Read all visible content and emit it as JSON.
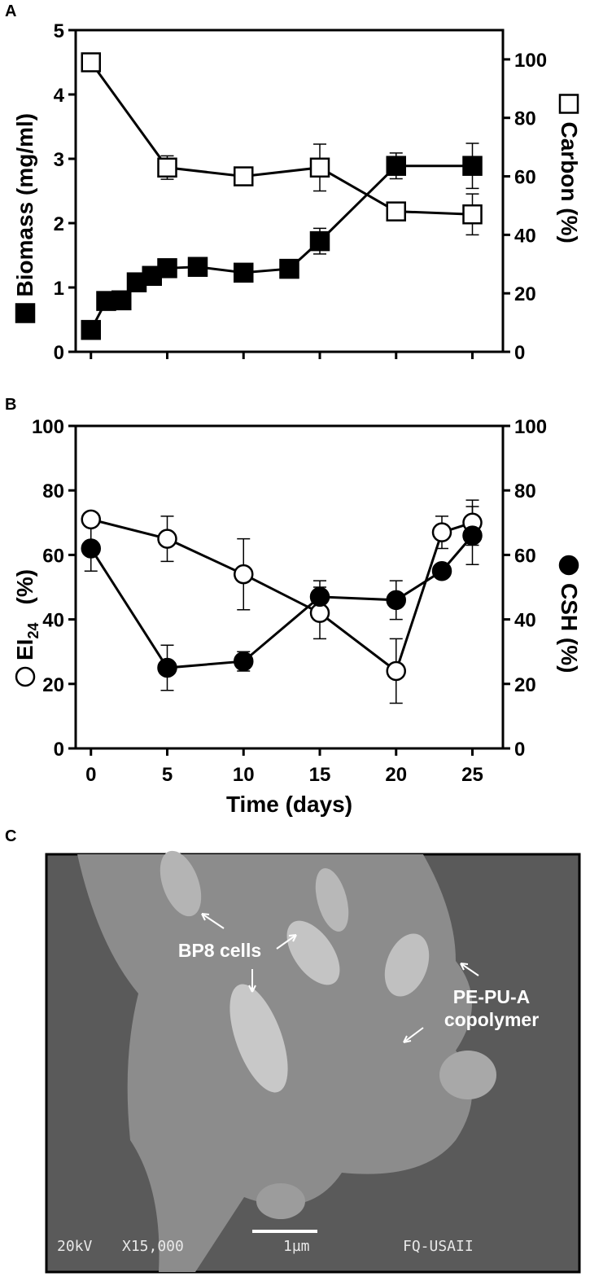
{
  "chart_data": [
    {
      "type": "line",
      "panel": "A",
      "xlim": [
        -1,
        27
      ],
      "xticks": [
        0,
        5,
        10,
        15,
        20,
        25
      ],
      "show_xtick_labels": false,
      "ylim": [
        0,
        5
      ],
      "yticks": [
        0,
        1,
        2,
        3,
        4,
        5
      ],
      "y2lim": [
        0,
        110
      ],
      "y2ticks": [
        0,
        20,
        40,
        60,
        80,
        100
      ],
      "ylabel": "Biomass (mg/ml)",
      "y2label": "Carbon (%)",
      "series": [
        {
          "marker": "square",
          "filled": true,
          "color": "#000000",
          "x": [
            0,
            1,
            2,
            3,
            4,
            5,
            7,
            10,
            13,
            15,
            20,
            25
          ],
          "values": [
            0.34,
            0.79,
            0.8,
            1.08,
            1.18,
            1.3,
            1.32,
            1.23,
            1.29,
            1.72,
            2.89,
            2.89
          ],
          "errors": [
            null,
            null,
            null,
            null,
            0.1,
            0.1,
            null,
            null,
            null,
            0.2,
            0.2,
            0.35
          ]
        },
        {
          "marker": "square",
          "filled": false,
          "color": "#000000",
          "axis": "y2",
          "x": [
            0,
            5,
            10,
            15,
            20,
            25
          ],
          "values": [
            99,
            63,
            60,
            63,
            48,
            47
          ],
          "errors": [
            null,
            4,
            null,
            8,
            null,
            7
          ]
        }
      ]
    },
    {
      "type": "line",
      "panel": "B",
      "xlim": [
        -1,
        27
      ],
      "xticks": [
        0,
        5,
        10,
        15,
        20,
        25
      ],
      "show_xtick_labels": true,
      "xlabel": "Time (days)",
      "ylim": [
        0,
        100
      ],
      "yticks": [
        0,
        20,
        40,
        60,
        80,
        100
      ],
      "y2lim": [
        0,
        100
      ],
      "y2ticks": [
        0,
        20,
        40,
        60,
        80,
        100
      ],
      "ylabel": "EI",
      "ylabel_sub": "24",
      "ylabel_unit": "(%)",
      "y2label": "CSH (%)",
      "series": [
        {
          "marker": "circle",
          "filled": false,
          "color": "#000000",
          "x": [
            0,
            5,
            10,
            15,
            20,
            23,
            25
          ],
          "values": [
            71,
            65,
            54,
            42,
            24,
            67,
            70
          ],
          "errors": [
            null,
            7,
            11,
            8,
            10,
            5,
            7
          ]
        },
        {
          "marker": "circle",
          "filled": true,
          "color": "#000000",
          "axis": "y2",
          "x": [
            0,
            5,
            10,
            15,
            20,
            23,
            25
          ],
          "values": [
            62,
            25,
            27,
            47,
            46,
            55,
            66
          ],
          "errors": [
            7,
            7,
            3,
            5,
            6,
            null,
            9
          ]
        }
      ]
    }
  ],
  "image": {
    "panel": "C",
    "labels": [
      "BP8 cells",
      "PE-PU-A",
      "copolymer"
    ],
    "info_bar": [
      "20kV",
      "X15,000",
      "1µm",
      "FQ-USAII"
    ]
  }
}
